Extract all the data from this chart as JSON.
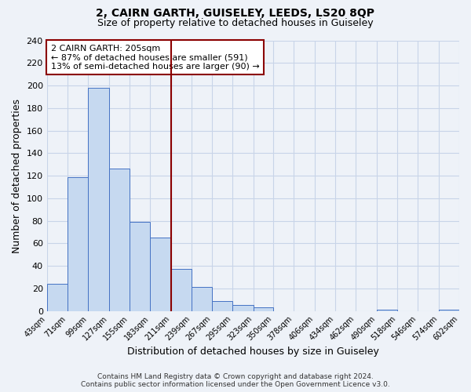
{
  "title": "2, CAIRN GARTH, GUISELEY, LEEDS, LS20 8QP",
  "subtitle": "Size of property relative to detached houses in Guiseley",
  "xlabel": "Distribution of detached houses by size in Guiseley",
  "ylabel": "Number of detached properties",
  "bin_edges": [
    43,
    71,
    99,
    127,
    155,
    183,
    211,
    239,
    267,
    295,
    323,
    350,
    378,
    406,
    434,
    462,
    490,
    518,
    546,
    574,
    602
  ],
  "bar_heights": [
    24,
    119,
    198,
    126,
    79,
    65,
    37,
    21,
    9,
    5,
    3,
    0,
    0,
    0,
    0,
    0,
    1,
    0,
    0,
    1
  ],
  "tick_labels": [
    "43sqm",
    "71sqm",
    "99sqm",
    "127sqm",
    "155sqm",
    "183sqm",
    "211sqm",
    "239sqm",
    "267sqm",
    "295sqm",
    "323sqm",
    "350sqm",
    "378sqm",
    "406sqm",
    "434sqm",
    "462sqm",
    "490sqm",
    "518sqm",
    "546sqm",
    "574sqm",
    "602sqm"
  ],
  "bar_color": "#c6d9f0",
  "bar_edge_color": "#4472c4",
  "vline_x": 211,
  "vline_color": "#8b0000",
  "annotation_line1": "2 CAIRN GARTH: 205sqm",
  "annotation_line2": "← 87% of detached houses are smaller (591)",
  "annotation_line3": "13% of semi-detached houses are larger (90) →",
  "annotation_box_color": "#8b0000",
  "annotation_box_fill": "#ffffff",
  "ylim": [
    0,
    240
  ],
  "yticks": [
    0,
    20,
    40,
    60,
    80,
    100,
    120,
    140,
    160,
    180,
    200,
    220,
    240
  ],
  "grid_color": "#c8d4e8",
  "bg_color": "#eef2f8",
  "footer_line1": "Contains HM Land Registry data © Crown copyright and database right 2024.",
  "footer_line2": "Contains public sector information licensed under the Open Government Licence v3.0."
}
